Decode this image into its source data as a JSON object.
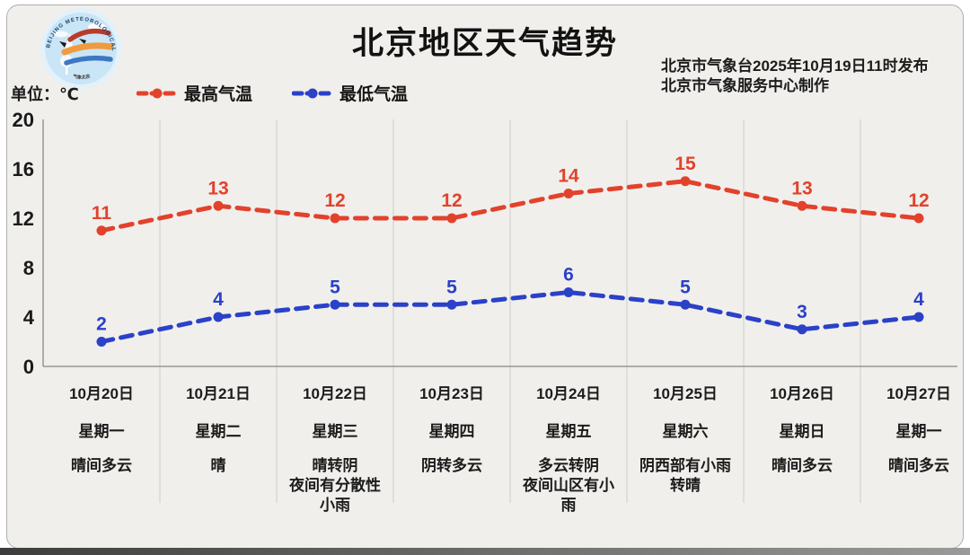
{
  "frame": {
    "card_bg": "#f0efec",
    "card_border": "#aeaeae",
    "bottom_bar": "#3d3d3d"
  },
  "header": {
    "title": "北京地区天气趋势",
    "issued_line1": "北京市气象台2025年10月19日11时发布",
    "issued_line2": "北京市气象服务中心制作",
    "unit_label": "单位：℃",
    "logo": {
      "arc_text_top": "BEIJING METEOROLOGICAL SERVICE",
      "arc_text_bottom": "气象北京"
    }
  },
  "legend": [
    {
      "label": "最高气温",
      "color": "#e2422c"
    },
    {
      "label": "最低气温",
      "color": "#2b41c8"
    }
  ],
  "chart_data": {
    "type": "line",
    "title": "北京地区天气趋势",
    "unit": "℃",
    "line_style": "dashed",
    "marker": "circle",
    "grid": "vertical",
    "legend_position": "top",
    "ylim": [
      0,
      20
    ],
    "yticks": [
      0,
      4,
      8,
      12,
      16,
      20
    ],
    "categories": [
      {
        "date": "10月20日",
        "weekday": "星期一",
        "weather": "晴间多云"
      },
      {
        "date": "10月21日",
        "weekday": "星期二",
        "weather": "晴"
      },
      {
        "date": "10月22日",
        "weekday": "星期三",
        "weather": "晴转阴\n夜间有分散性\n小雨"
      },
      {
        "date": "10月23日",
        "weekday": "星期四",
        "weather": "阴转多云"
      },
      {
        "date": "10月24日",
        "weekday": "星期五",
        "weather": "多云转阴\n夜间山区有小\n雨"
      },
      {
        "date": "10月25日",
        "weekday": "星期六",
        "weather": "阴西部有小雨\n转晴"
      },
      {
        "date": "10月26日",
        "weekday": "星期日",
        "weather": "晴间多云"
      },
      {
        "date": "10月27日",
        "weekday": "星期一",
        "weather": "晴间多云"
      }
    ],
    "series": [
      {
        "name": "最高气温",
        "color": "#e2422c",
        "values": [
          11,
          13,
          12,
          12,
          14,
          15,
          13,
          12
        ]
      },
      {
        "name": "最低气温",
        "color": "#2b41c8",
        "values": [
          2,
          4,
          5,
          5,
          6,
          5,
          3,
          4
        ]
      }
    ]
  }
}
